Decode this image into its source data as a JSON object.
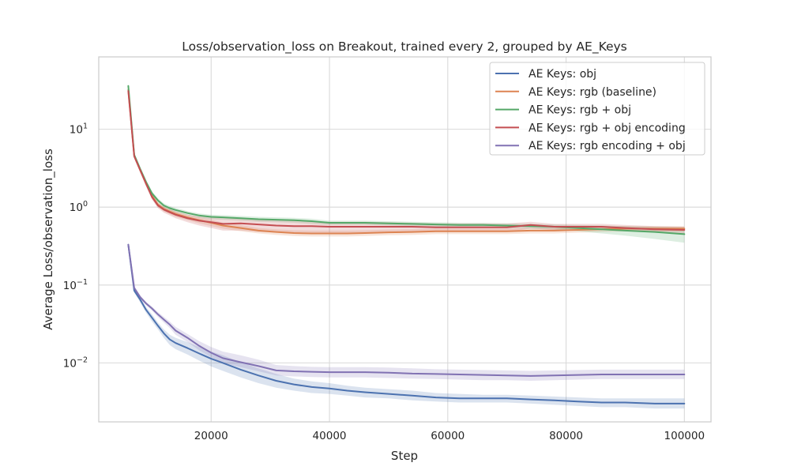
{
  "chart_data": {
    "type": "line",
    "title": "Loss/observation_loss on Breakout, trained every 2, grouped by AE_Keys",
    "xlabel": "Step",
    "ylabel": "Average Loss/observation_loss",
    "yscale": "log",
    "xlim": [
      1000,
      104500
    ],
    "ylim": [
      0.00175,
      85
    ],
    "x_ticks": [
      20000,
      40000,
      60000,
      80000,
      100000
    ],
    "x_tick_labels": [
      "20000",
      "40000",
      "60000",
      "80000",
      "100000"
    ],
    "y_ticks": [
      {
        "value": 10,
        "base": "10",
        "exp": "1"
      },
      {
        "value": 1,
        "base": "10",
        "exp": "0"
      },
      {
        "value": 0.1,
        "base": "10",
        "exp": "−1"
      },
      {
        "value": 0.01,
        "base": "10",
        "exp": "−2"
      }
    ],
    "grid": true,
    "legend_position": "upper right",
    "series": [
      {
        "name": "AE Keys: obj",
        "color": "#4c72b0",
        "x": [
          6000,
          7000,
          8000,
          9000,
          10000,
          11000,
          12000,
          13000,
          14000,
          16000,
          18000,
          20000,
          22000,
          25000,
          28000,
          31000,
          34000,
          37000,
          40000,
          43000,
          46000,
          50000,
          54000,
          58000,
          62000,
          66000,
          70000,
          74000,
          78000,
          82000,
          86000,
          90000,
          95000,
          100000
        ],
        "y": [
          0.33,
          0.085,
          0.065,
          0.048,
          0.038,
          0.03,
          0.024,
          0.02,
          0.018,
          0.0155,
          0.0132,
          0.0113,
          0.01,
          0.0082,
          0.0069,
          0.0059,
          0.0053,
          0.0049,
          0.0047,
          0.0044,
          0.0042,
          0.004,
          0.0038,
          0.0036,
          0.0035,
          0.0035,
          0.0035,
          0.0034,
          0.0033,
          0.0032,
          0.0031,
          0.0031,
          0.003,
          0.003
        ],
        "lower": [
          0.31,
          0.08,
          0.06,
          0.044,
          0.034,
          0.027,
          0.021,
          0.017,
          0.015,
          0.0128,
          0.0107,
          0.009,
          0.0079,
          0.0065,
          0.0055,
          0.0048,
          0.0044,
          0.0041,
          0.004,
          0.0038,
          0.0036,
          0.0035,
          0.0033,
          0.0032,
          0.0031,
          0.0031,
          0.0031,
          0.003,
          0.0029,
          0.0028,
          0.0027,
          0.0027,
          0.0026,
          0.0026
        ],
        "upper": [
          0.35,
          0.09,
          0.07,
          0.052,
          0.042,
          0.033,
          0.027,
          0.023,
          0.021,
          0.0185,
          0.016,
          0.014,
          0.0125,
          0.0102,
          0.0085,
          0.0072,
          0.0063,
          0.0058,
          0.0055,
          0.0051,
          0.0048,
          0.0046,
          0.0044,
          0.0041,
          0.004,
          0.0039,
          0.0039,
          0.0038,
          0.0037,
          0.0036,
          0.0035,
          0.0035,
          0.0035,
          0.0035
        ]
      },
      {
        "name": "AE Keys: rgb (baseline)",
        "color": "#dd8452",
        "x": [
          6000,
          7000,
          8000,
          9000,
          10000,
          11000,
          12000,
          13000,
          14000,
          16000,
          18000,
          20000,
          22000,
          25000,
          28000,
          31000,
          34000,
          37000,
          40000,
          43000,
          46000,
          50000,
          54000,
          58000,
          62000,
          66000,
          70000,
          74000,
          78000,
          82000,
          86000,
          90000,
          95000,
          100000
        ],
        "y": [
          32,
          4.6,
          3.0,
          2.0,
          1.4,
          1.08,
          0.95,
          0.88,
          0.82,
          0.74,
          0.68,
          0.63,
          0.58,
          0.54,
          0.5,
          0.48,
          0.465,
          0.46,
          0.46,
          0.46,
          0.465,
          0.475,
          0.48,
          0.49,
          0.49,
          0.49,
          0.49,
          0.5,
          0.5,
          0.51,
          0.52,
          0.53,
          0.53,
          0.53
        ],
        "lower": [
          30,
          4.3,
          2.8,
          1.85,
          1.3,
          1.0,
          0.88,
          0.81,
          0.75,
          0.68,
          0.62,
          0.57,
          0.53,
          0.49,
          0.46,
          0.44,
          0.425,
          0.42,
          0.42,
          0.42,
          0.425,
          0.435,
          0.44,
          0.45,
          0.45,
          0.45,
          0.45,
          0.46,
          0.46,
          0.47,
          0.48,
          0.49,
          0.49,
          0.49
        ],
        "upper": [
          34,
          4.9,
          3.2,
          2.15,
          1.5,
          1.16,
          1.02,
          0.95,
          0.89,
          0.8,
          0.74,
          0.69,
          0.63,
          0.59,
          0.54,
          0.52,
          0.505,
          0.5,
          0.5,
          0.5,
          0.505,
          0.515,
          0.52,
          0.53,
          0.53,
          0.53,
          0.53,
          0.54,
          0.54,
          0.55,
          0.56,
          0.57,
          0.57,
          0.57
        ]
      },
      {
        "name": "AE Keys: rgb + obj",
        "color": "#55a868",
        "x": [
          6000,
          7000,
          8000,
          9000,
          10000,
          11000,
          12000,
          13000,
          14000,
          16000,
          18000,
          20000,
          22000,
          25000,
          28000,
          31000,
          34000,
          37000,
          40000,
          43000,
          46000,
          50000,
          54000,
          58000,
          62000,
          66000,
          70000,
          74000,
          78000,
          82000,
          86000,
          90000,
          95000,
          100000
        ],
        "y": [
          36,
          4.7,
          3.1,
          2.1,
          1.5,
          1.22,
          1.05,
          0.97,
          0.92,
          0.84,
          0.78,
          0.75,
          0.74,
          0.72,
          0.7,
          0.69,
          0.68,
          0.66,
          0.63,
          0.63,
          0.63,
          0.62,
          0.61,
          0.6,
          0.59,
          0.59,
          0.58,
          0.57,
          0.56,
          0.54,
          0.52,
          0.5,
          0.48,
          0.45
        ],
        "lower": [
          34,
          4.4,
          2.9,
          1.95,
          1.4,
          1.14,
          0.98,
          0.91,
          0.86,
          0.79,
          0.73,
          0.7,
          0.69,
          0.67,
          0.65,
          0.64,
          0.63,
          0.61,
          0.59,
          0.59,
          0.59,
          0.58,
          0.57,
          0.56,
          0.55,
          0.55,
          0.54,
          0.53,
          0.52,
          0.49,
          0.46,
          0.43,
          0.39,
          0.35
        ],
        "upper": [
          38,
          5.0,
          3.3,
          2.25,
          1.6,
          1.3,
          1.12,
          1.03,
          0.98,
          0.89,
          0.83,
          0.8,
          0.79,
          0.77,
          0.75,
          0.74,
          0.73,
          0.71,
          0.67,
          0.67,
          0.67,
          0.66,
          0.65,
          0.64,
          0.63,
          0.63,
          0.62,
          0.61,
          0.6,
          0.59,
          0.58,
          0.57,
          0.56,
          0.55
        ]
      },
      {
        "name": "AE Keys: rgb + obj encoding",
        "color": "#c44e52",
        "x": [
          6000,
          7000,
          8000,
          9000,
          10000,
          11000,
          12000,
          13000,
          14000,
          16000,
          18000,
          20000,
          22000,
          25000,
          28000,
          31000,
          34000,
          37000,
          40000,
          43000,
          46000,
          50000,
          54000,
          58000,
          62000,
          66000,
          70000,
          74000,
          78000,
          82000,
          86000,
          90000,
          95000,
          100000
        ],
        "y": [
          31,
          4.5,
          3.0,
          2.0,
          1.35,
          1.05,
          0.93,
          0.86,
          0.8,
          0.72,
          0.67,
          0.64,
          0.61,
          0.62,
          0.6,
          0.58,
          0.57,
          0.57,
          0.56,
          0.56,
          0.56,
          0.56,
          0.56,
          0.55,
          0.55,
          0.55,
          0.55,
          0.59,
          0.56,
          0.56,
          0.56,
          0.54,
          0.52,
          0.51
        ],
        "lower": [
          29,
          4.2,
          2.8,
          1.85,
          1.25,
          0.97,
          0.85,
          0.78,
          0.72,
          0.64,
          0.58,
          0.54,
          0.5,
          0.5,
          0.48,
          0.47,
          0.47,
          0.47,
          0.47,
          0.47,
          0.47,
          0.47,
          0.48,
          0.48,
          0.48,
          0.48,
          0.48,
          0.53,
          0.51,
          0.51,
          0.51,
          0.49,
          0.47,
          0.46
        ],
        "upper": [
          33,
          4.8,
          3.2,
          2.15,
          1.45,
          1.13,
          1.01,
          0.94,
          0.88,
          0.8,
          0.76,
          0.74,
          0.72,
          0.73,
          0.71,
          0.69,
          0.67,
          0.66,
          0.65,
          0.65,
          0.65,
          0.64,
          0.63,
          0.62,
          0.62,
          0.62,
          0.62,
          0.65,
          0.61,
          0.61,
          0.61,
          0.59,
          0.57,
          0.56
        ]
      },
      {
        "name": "AE Keys: rgb encoding + obj",
        "color": "#8172b3",
        "x": [
          6000,
          7000,
          8000,
          9000,
          10000,
          11000,
          12000,
          13000,
          14000,
          16000,
          18000,
          20000,
          22000,
          25000,
          28000,
          31000,
          34000,
          37000,
          40000,
          43000,
          46000,
          50000,
          54000,
          58000,
          62000,
          66000,
          70000,
          74000,
          78000,
          82000,
          86000,
          90000,
          95000,
          100000
        ],
        "y": [
          0.33,
          0.092,
          0.07,
          0.058,
          0.05,
          0.042,
          0.036,
          0.031,
          0.026,
          0.021,
          0.0165,
          0.0135,
          0.0115,
          0.0102,
          0.0091,
          0.008,
          0.0078,
          0.0077,
          0.0076,
          0.0076,
          0.0076,
          0.0075,
          0.0073,
          0.0072,
          0.0071,
          0.007,
          0.0069,
          0.0068,
          0.0069,
          0.007,
          0.0071,
          0.0071,
          0.0071,
          0.0071
        ],
        "lower": [
          0.31,
          0.087,
          0.066,
          0.055,
          0.047,
          0.039,
          0.033,
          0.028,
          0.023,
          0.0185,
          0.0145,
          0.0118,
          0.01,
          0.0088,
          0.0078,
          0.0069,
          0.0067,
          0.0066,
          0.0065,
          0.0065,
          0.0065,
          0.0064,
          0.0063,
          0.0062,
          0.0061,
          0.006,
          0.006,
          0.0059,
          0.006,
          0.0061,
          0.0062,
          0.0062,
          0.0062,
          0.0062
        ],
        "upper": [
          0.35,
          0.097,
          0.074,
          0.061,
          0.053,
          0.045,
          0.039,
          0.034,
          0.029,
          0.0235,
          0.019,
          0.016,
          0.014,
          0.0125,
          0.011,
          0.0094,
          0.0091,
          0.0089,
          0.0088,
          0.0088,
          0.0088,
          0.0087,
          0.0085,
          0.0083,
          0.0082,
          0.0081,
          0.008,
          0.0079,
          0.008,
          0.0081,
          0.0082,
          0.0082,
          0.0082,
          0.0082
        ]
      }
    ]
  }
}
